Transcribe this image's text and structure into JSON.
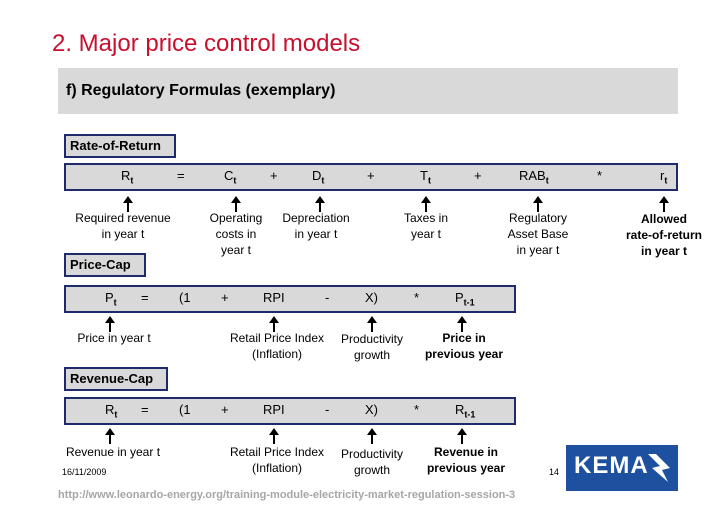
{
  "title": "2. Major price control models",
  "subtitle": "f) Regulatory Formulas (exemplary)",
  "sections": {
    "ror": {
      "label": "Rate-of-Return",
      "R": "R",
      "Rsub": "t",
      "eq": "=",
      "C": "C",
      "Csub": "t",
      "plus1": "+",
      "D": "D",
      "Dsub": "t",
      "plus2": "+",
      "T": "T",
      "Tsub": "t",
      "plus3": "+",
      "RAB": "RAB",
      "RABsub": "t",
      "times": "*",
      "r": "r",
      "rsub": "t",
      "notes": {
        "required_revenue": "Required revenue\nin year t",
        "operating_costs": "Operating\ncosts in\nyear t",
        "depreciation": "Depreciation\nin year t",
        "taxes": "Taxes in\nyear t",
        "asset_base": "Regulatory\nAsset Base\nin year t",
        "allowed_return": "Allowed\nrate-of-return\nin year t"
      }
    },
    "pricecap": {
      "label": "Price-Cap",
      "P": "P",
      "Psub": "t",
      "eq": "=",
      "open": "(1",
      "plus": "+",
      "rpi": "RPI",
      "minus": "-",
      "x": "X)",
      "times": "*",
      "Pprev": "P",
      "Pprevsub": "t-1",
      "notes": {
        "price_year": "Price in year t",
        "rpi": "Retail Price Index\n(Inflation)",
        "productivity": "Productivity\ngrowth",
        "prev_price": "Price in\nprevious year"
      }
    },
    "revcap": {
      "label": "Revenue-Cap",
      "R": "R",
      "Rsub": "t",
      "eq": "=",
      "open": "(1",
      "plus": "+",
      "rpi": "RPI",
      "minus": "-",
      "x": "X)",
      "times": "*",
      "Rprev": "R",
      "Rprevsub": "t-1",
      "notes": {
        "revenue_year": "Revenue in year t",
        "rpi": "Retail Price Index\n(Inflation)",
        "productivity": "Productivity\ngrowth",
        "prev_revenue": "Revenue in\nprevious year"
      }
    }
  },
  "footer": {
    "date": "16/11/2009",
    "page": "14",
    "url": "http://www.leonardo-energy.org/training-module-electricity-market-regulation-session-3",
    "logo": "KEMA"
  },
  "colors": {
    "title": "#c8102e",
    "box_border": "#1f2a6b",
    "box_fill": "#d9d9d9",
    "logo_blue": "#1e50a0"
  }
}
